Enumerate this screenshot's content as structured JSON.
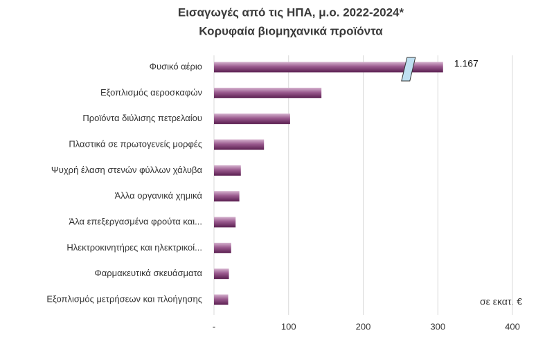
{
  "chart_data": {
    "type": "hbar",
    "title": "Εισαγωγές από τις ΗΠΑ, μ.ο. 2022-2024*",
    "subtitle": "Κορυφαία βιομηχανικά προϊόντα",
    "categories": [
      "Φυσικό αέριο",
      "Εξοπλισμός αεροσκαφών",
      "Προϊόντα διύλισης πετρελαίου",
      "Πλαστικά σε πρωτογενείς μορφές",
      "Ψυχρή έλαση στενών φύλλων χάλυβα",
      "Άλλα οργανικά χημικά",
      "Άλα επεξεργασμένα φρούτα και...",
      "Ηλεκτροκινητήρες και ηλεκτρικοί...",
      "Φαρμακευτικά σκευάσματα",
      "Εξοπλισμός μετρήσεων και πλοήγησης"
    ],
    "values": [
      1167,
      144,
      102,
      67,
      36,
      34,
      29,
      23,
      20,
      19
    ],
    "value_labels": [
      "1.167",
      null,
      null,
      null,
      null,
      null,
      null,
      null,
      null,
      null
    ],
    "xlim": [
      0,
      400
    ],
    "xticks": [
      {
        "value": 0,
        "label": "-"
      },
      100,
      200,
      300,
      400
    ],
    "grid": true,
    "color": "#6e2a63",
    "annotation": "σε εκατ. €"
  }
}
